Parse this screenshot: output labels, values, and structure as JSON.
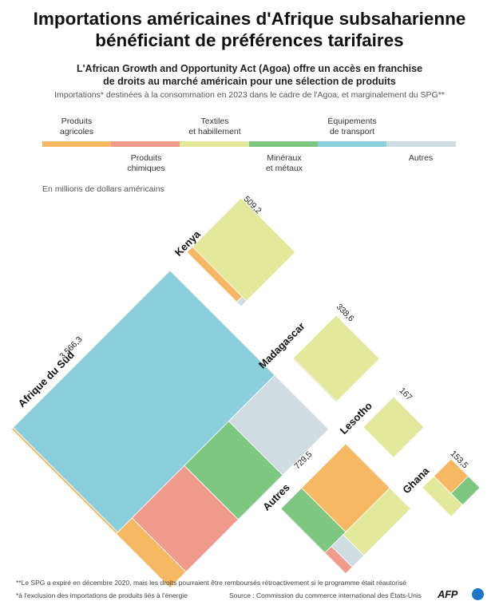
{
  "title": {
    "line1": "Importations américaines d'Afrique subsaharienne",
    "line2": "bénéficiant de préférences tarifaires"
  },
  "subtitle": {
    "line1": "L'African Growth and Opportunity Act (Agoa) offre un accès en franchise",
    "line2": "de droits au marché américain pour une sélection de produits"
  },
  "note": "Importations* destinées à la consommation en 2023 dans le cadre de l'Agoa, et marginalement du SPG**",
  "unit": "En millions de dollars américains",
  "legend": [
    {
      "line1": "Produits",
      "line2": "agricoles",
      "color": "#f6b862"
    },
    {
      "line1": "Produits",
      "line2": "chimiques",
      "color": "#f09a8c"
    },
    {
      "line1": "Textiles",
      "line2": "et habillement",
      "color": "#e3e99b"
    },
    {
      "line1": "Minéraux",
      "line2": "et métaux",
      "color": "#7ec781"
    },
    {
      "line1": "Équipements",
      "line2": "de transport",
      "color": "#8ccfdc"
    },
    {
      "line1": "Autres",
      "line2": "",
      "color": "#cfdde2"
    }
  ],
  "footnotes": {
    "spg": "**Le SPG a expiré en décembre 2020, mais les droits pourraient être remboursés rétroactivement si le programme était réautorisé",
    "energy": "*à l'exclusion des importations de produits liés à l'énergie",
    "source": "Source : Commission du commerce international des États-Unis"
  },
  "logo": "AFP",
  "chart_data": {
    "type": "treemap",
    "unit": "En millions de dollars américains",
    "categories": [
      "Produits agricoles",
      "Produits chimiques",
      "Textiles et habillement",
      "Minéraux et métaux",
      "Équipements de transport",
      "Autres"
    ],
    "countries": [
      {
        "name": "Afrique du Sud",
        "total": 3566.3,
        "total_label": "3 566,3",
        "breakdown_estimated": {
          "Équipements de transport": 1830,
          "Produits agricoles": 450,
          "Produits chimiques": 455,
          "Minéraux et métaux": 440,
          "Autres": 390
        }
      },
      {
        "name": "Kenya",
        "total": 509.2,
        "total_label": "509,2",
        "breakdown_estimated": {
          "Textiles et habillement": 480,
          "Produits agricoles": 24,
          "Autres": 5
        }
      },
      {
        "name": "Madagascar",
        "total": 338.6,
        "total_label": "338,6",
        "breakdown_estimated": {
          "Textiles et habillement": 335,
          "Produits agricoles": 2,
          "Minéraux et métaux": 1.6
        }
      },
      {
        "name": "Lesotho",
        "total": 167,
        "total_label": "167",
        "breakdown_estimated": {
          "Textiles et habillement": 167
        }
      },
      {
        "name": "Autres",
        "total": 729.5,
        "total_label": "729,5",
        "breakdown_estimated": {
          "Produits agricoles": 410,
          "Minéraux et métaux": 170,
          "Textiles et habillement": 120,
          "Autres": 20,
          "Produits chimiques": 9.5
        }
      },
      {
        "name": "Ghana",
        "total": 153.5,
        "total_label": "153,5",
        "breakdown_estimated": {
          "Produits agricoles": 80,
          "Textiles et habillement": 45,
          "Minéraux et métaux": 28.5
        }
      }
    ]
  }
}
